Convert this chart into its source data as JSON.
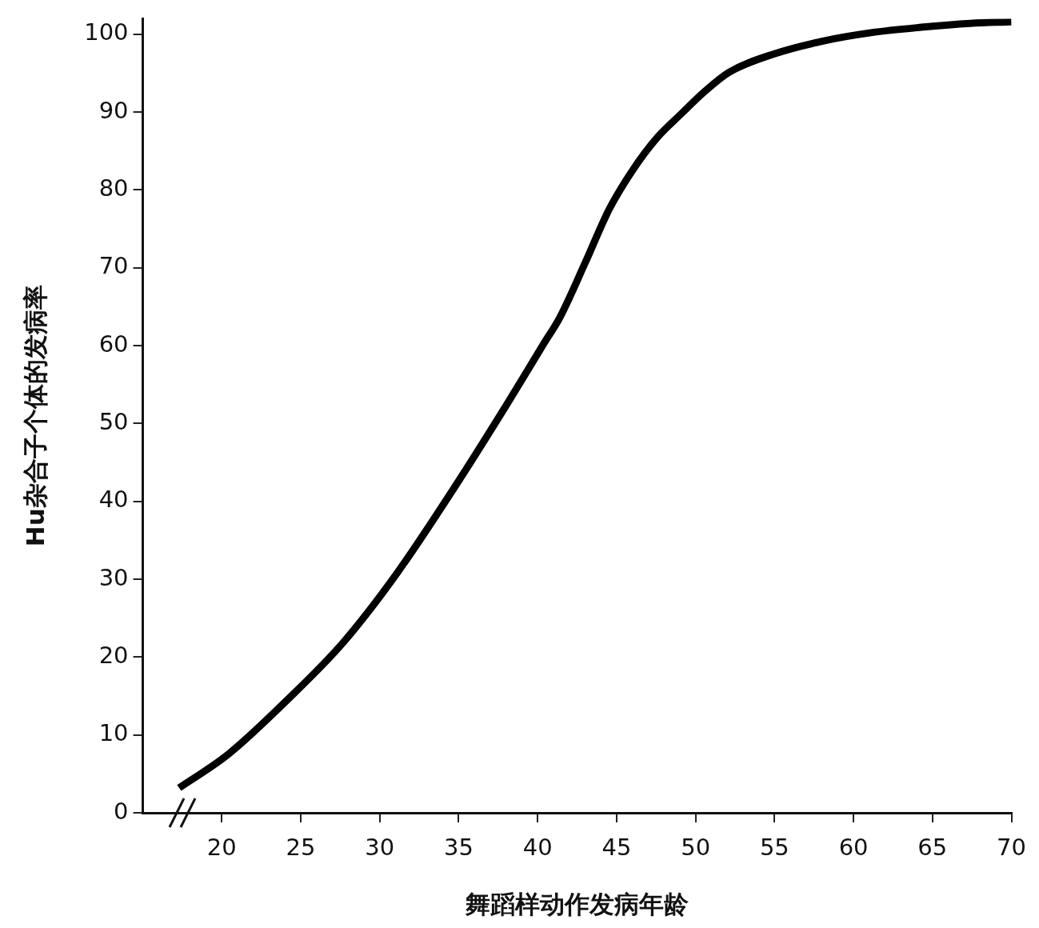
{
  "chart_data": {
    "type": "line",
    "xlabel": "舞蹈样动作发病年龄",
    "ylabel": "Hu杂合子个体的发病率",
    "x": [
      17.3,
      20.4,
      24.3,
      27.7,
      31.1,
      34.7,
      38.0,
      40.4,
      41.4,
      43.0,
      44.5,
      46.0,
      47.6,
      49.1,
      50.6,
      52.1,
      55.0,
      58.0,
      61.1,
      64.3,
      67.4,
      70
    ],
    "values": [
      3.2,
      7.5,
      14.8,
      21.9,
      30.8,
      41.7,
      52.3,
      60.3,
      63.6,
      70.6,
      77.4,
      82.5,
      86.8,
      89.8,
      92.7,
      95.1,
      97.5,
      99.1,
      100.2,
      100.9,
      101.4,
      101.6
    ],
    "color": "#000000",
    "xlim": [
      15,
      70
    ],
    "xticks": [
      20,
      25,
      30,
      35,
      40,
      45,
      50,
      55,
      60,
      65,
      70
    ],
    "ylim": [
      0,
      102
    ],
    "yticks": [
      0,
      10,
      20,
      30,
      40,
      50,
      60,
      70,
      80,
      90,
      100
    ]
  }
}
